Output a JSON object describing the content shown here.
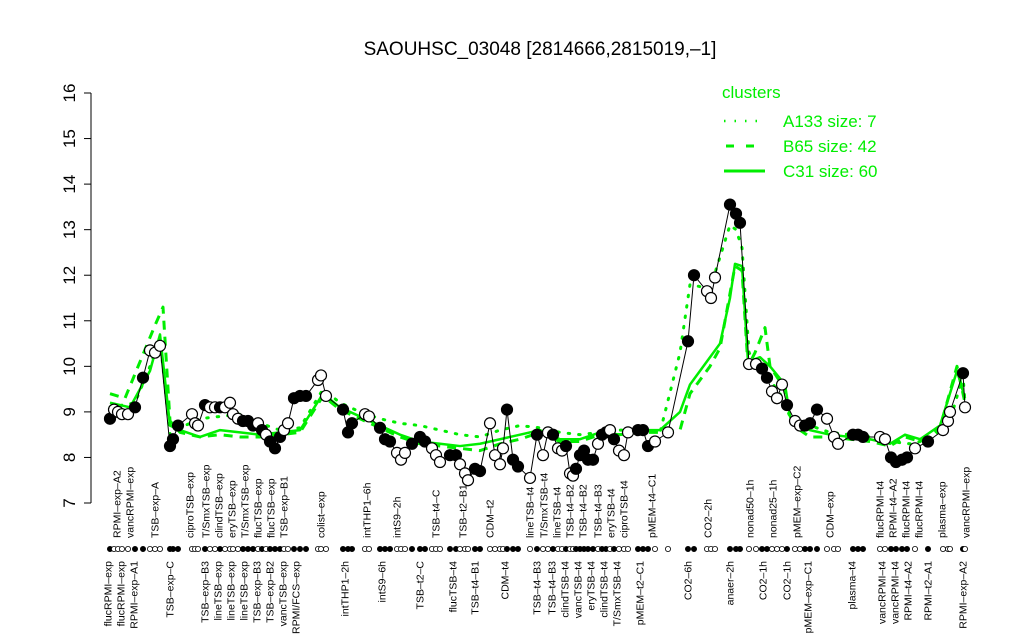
{
  "chart_data": {
    "type": "line",
    "title": "SAOUHSC_03048 [2814666,2815019,–1]",
    "xlabel": "",
    "ylabel": "",
    "ylim": [
      7,
      16
    ],
    "xlim": [
      0,
      85.5
    ],
    "yticks": [
      "7",
      "8",
      "9",
      "10",
      "11",
      "12",
      "13",
      "14",
      "15",
      "16"
    ],
    "grid": false,
    "legend": {
      "title": "clusters",
      "placement": "top-right",
      "color": "#00ee00",
      "entries": [
        {
          "label": "A133 size: 7",
          "style": "dotted"
        },
        {
          "label": "B65 size: 42",
          "style": "dashed"
        },
        {
          "label": "C31 size: 60",
          "style": "solid"
        }
      ]
    },
    "points_note_fields": [
      "x",
      "value",
      "filled"
    ],
    "points": [
      [
        0,
        8.85,
        1
      ],
      [
        0.4,
        9.05,
        0
      ],
      [
        0.8,
        9.0,
        0
      ],
      [
        1.2,
        8.95,
        0
      ],
      [
        1.8,
        8.95,
        0
      ],
      [
        2.5,
        9.1,
        1
      ],
      [
        3.3,
        9.75,
        1
      ],
      [
        4.0,
        10.35,
        0
      ],
      [
        4.5,
        10.3,
        0
      ],
      [
        5.0,
        10.45,
        0
      ],
      [
        6.0,
        8.25,
        1
      ],
      [
        6.3,
        8.4,
        1
      ],
      [
        6.8,
        8.7,
        1
      ],
      [
        8.2,
        8.95,
        0
      ],
      [
        8.5,
        8.75,
        0
      ],
      [
        8.8,
        8.7,
        0
      ],
      [
        9.5,
        9.15,
        1
      ],
      [
        10.0,
        9.1,
        0
      ],
      [
        10.5,
        9.1,
        0
      ],
      [
        11.0,
        9.1,
        1
      ],
      [
        11.5,
        9.1,
        0
      ],
      [
        12.0,
        9.2,
        0
      ],
      [
        12.3,
        8.95,
        0
      ],
      [
        12.8,
        8.85,
        0
      ],
      [
        13.3,
        8.8,
        1
      ],
      [
        13.8,
        8.8,
        1
      ],
      [
        14.3,
        8.7,
        1
      ],
      [
        14.8,
        8.75,
        0
      ],
      [
        15.2,
        8.6,
        1
      ],
      [
        15.6,
        8.5,
        0
      ],
      [
        16.0,
        8.35,
        1
      ],
      [
        16.5,
        8.2,
        1
      ],
      [
        17.0,
        8.45,
        1
      ],
      [
        17.4,
        8.6,
        0
      ],
      [
        17.8,
        8.75,
        0
      ],
      [
        18.4,
        9.3,
        1
      ],
      [
        19.0,
        9.35,
        1
      ],
      [
        19.6,
        9.35,
        1
      ],
      [
        20.8,
        9.7,
        0
      ],
      [
        21.1,
        9.8,
        0
      ],
      [
        21.6,
        9.35,
        0
      ],
      [
        23.3,
        9.05,
        1
      ],
      [
        23.8,
        8.55,
        1
      ],
      [
        24.2,
        8.75,
        1
      ],
      [
        25.5,
        8.95,
        0
      ],
      [
        25.9,
        8.9,
        0
      ],
      [
        27.0,
        8.65,
        1
      ],
      [
        27.5,
        8.4,
        1
      ],
      [
        28.0,
        8.35,
        1
      ],
      [
        28.7,
        8.1,
        0
      ],
      [
        29.1,
        7.95,
        0
      ],
      [
        29.5,
        8.1,
        0
      ],
      [
        30.2,
        8.3,
        1
      ],
      [
        31.0,
        8.45,
        1
      ],
      [
        31.5,
        8.35,
        1
      ],
      [
        32.2,
        8.2,
        0
      ],
      [
        32.6,
        8.05,
        0
      ],
      [
        33.0,
        7.9,
        0
      ],
      [
        34.0,
        8.05,
        1
      ],
      [
        34.6,
        8.05,
        1
      ],
      [
        35.0,
        7.85,
        0
      ],
      [
        35.5,
        7.65,
        0
      ],
      [
        35.8,
        7.5,
        0
      ],
      [
        36.5,
        7.75,
        1
      ],
      [
        37.0,
        7.7,
        1
      ],
      [
        38.0,
        8.75,
        0
      ],
      [
        38.5,
        8.05,
        0
      ],
      [
        39.0,
        7.85,
        0
      ],
      [
        39.3,
        8.2,
        0
      ],
      [
        39.7,
        9.05,
        1
      ],
      [
        40.3,
        7.95,
        1
      ],
      [
        40.8,
        7.8,
        1
      ],
      [
        42.0,
        7.55,
        0
      ],
      [
        42.7,
        8.5,
        1
      ],
      [
        43.3,
        8.05,
        0
      ],
      [
        43.8,
        8.55,
        0
      ],
      [
        44.3,
        8.5,
        1
      ],
      [
        44.8,
        8.2,
        0
      ],
      [
        45.2,
        8.15,
        0
      ],
      [
        45.6,
        8.25,
        1
      ],
      [
        46.0,
        7.65,
        0
      ],
      [
        46.3,
        7.6,
        0
      ],
      [
        46.6,
        7.75,
        1
      ],
      [
        47.0,
        8.05,
        1
      ],
      [
        47.4,
        8.15,
        1
      ],
      [
        47.8,
        7.95,
        1
      ],
      [
        48.3,
        7.95,
        1
      ],
      [
        48.8,
        8.3,
        0
      ],
      [
        49.2,
        8.5,
        1
      ],
      [
        49.6,
        8.55,
        1
      ],
      [
        50.0,
        8.6,
        0
      ],
      [
        50.4,
        8.4,
        1
      ],
      [
        50.9,
        8.15,
        0
      ],
      [
        51.4,
        8.05,
        0
      ],
      [
        51.8,
        8.55,
        0
      ],
      [
        52.8,
        8.6,
        1
      ],
      [
        53.3,
        8.6,
        1
      ],
      [
        53.8,
        8.25,
        1
      ],
      [
        54.5,
        8.35,
        0
      ],
      [
        55.8,
        8.55,
        0
      ],
      [
        57.8,
        10.55,
        1
      ],
      [
        58.4,
        12.0,
        1
      ],
      [
        59.7,
        11.65,
        0
      ],
      [
        60.1,
        11.5,
        0
      ],
      [
        60.5,
        11.95,
        0
      ],
      [
        62.0,
        13.55,
        1
      ],
      [
        62.6,
        13.35,
        1
      ],
      [
        63.0,
        13.15,
        1
      ],
      [
        63.9,
        10.05,
        0
      ],
      [
        64.6,
        10.05,
        0
      ],
      [
        65.2,
        9.95,
        1
      ],
      [
        65.7,
        9.75,
        1
      ],
      [
        66.2,
        9.45,
        0
      ],
      [
        66.7,
        9.3,
        0
      ],
      [
        67.2,
        9.6,
        0
      ],
      [
        67.7,
        9.15,
        1
      ],
      [
        68.5,
        8.8,
        0
      ],
      [
        69.0,
        8.7,
        0
      ],
      [
        69.5,
        8.7,
        1
      ],
      [
        70.0,
        8.75,
        1
      ],
      [
        70.7,
        9.05,
        1
      ],
      [
        71.7,
        8.85,
        0
      ],
      [
        72.4,
        8.45,
        0
      ],
      [
        72.8,
        8.3,
        0
      ],
      [
        74.3,
        8.5,
        1
      ],
      [
        74.8,
        8.5,
        1
      ],
      [
        75.3,
        8.45,
        1
      ],
      [
        77.0,
        8.45,
        0
      ],
      [
        77.5,
        8.4,
        0
      ],
      [
        78.1,
        8.0,
        1
      ],
      [
        78.6,
        7.9,
        1
      ],
      [
        79.2,
        7.95,
        1
      ],
      [
        79.7,
        8.0,
        1
      ],
      [
        80.5,
        8.2,
        0
      ],
      [
        81.8,
        8.35,
        1
      ],
      [
        83.3,
        8.6,
        0
      ],
      [
        83.8,
        8.8,
        0
      ],
      [
        84.0,
        9.0,
        0
      ],
      [
        85.3,
        9.85,
        1
      ],
      [
        85.5,
        9.1,
        0
      ]
    ],
    "series": [
      {
        "name": "C31 size: 60",
        "style": "solid",
        "x": [
          0,
          2,
          3,
          4,
          5,
          6,
          7,
          9,
          11,
          13,
          15,
          17,
          19,
          21.3,
          23,
          25,
          27,
          29,
          31,
          33,
          35,
          37,
          39,
          41,
          43,
          45,
          47,
          49,
          51,
          53,
          55,
          57,
          58,
          60,
          61,
          62,
          62.5,
          63.2,
          63.8,
          65,
          66,
          67.5,
          68,
          69,
          70,
          72,
          74,
          76,
          78,
          79.5,
          81,
          83,
          84.7,
          85.5
        ],
        "y": [
          9.2,
          9.1,
          9.5,
          9.9,
          10.7,
          8.7,
          8.6,
          8.45,
          8.6,
          8.55,
          8.5,
          8.55,
          8.6,
          9.4,
          9.1,
          8.9,
          8.7,
          8.5,
          8.35,
          8.3,
          8.25,
          8.3,
          8.4,
          8.5,
          8.6,
          8.4,
          8.4,
          8.55,
          8.5,
          8.6,
          8.6,
          9.0,
          9.6,
          10.2,
          10.5,
          11.5,
          12.25,
          12.2,
          10.1,
          10.2,
          10.0,
          9.6,
          8.9,
          8.7,
          8.6,
          8.5,
          8.45,
          8.4,
          8.3,
          8.5,
          8.4,
          8.7,
          9.9,
          9.3
        ]
      },
      {
        "name": "B65 size: 42",
        "style": "dashed",
        "x": [
          0,
          1.5,
          3,
          4.5,
          5.3,
          6,
          7,
          9,
          11,
          13,
          15,
          17,
          19,
          21.3,
          23,
          25,
          27,
          29,
          31,
          33,
          35,
          37,
          39,
          41,
          43,
          45,
          47,
          49,
          51,
          53,
          55,
          57,
          58,
          60,
          61,
          62,
          62.5,
          63.2,
          63.8,
          64.5,
          65.5,
          66,
          67.5,
          68,
          69,
          70,
          72,
          74,
          76,
          78,
          79.5,
          81,
          83,
          84.7,
          85.5
        ],
        "y": [
          9.4,
          9.3,
          10.1,
          10.9,
          11.3,
          8.8,
          8.55,
          8.45,
          8.5,
          8.45,
          8.45,
          8.5,
          8.55,
          9.35,
          9.05,
          8.85,
          8.65,
          8.45,
          8.3,
          8.25,
          8.2,
          8.15,
          8.3,
          8.4,
          8.55,
          8.35,
          8.35,
          8.5,
          8.5,
          8.55,
          8.55,
          8.6,
          9.4,
          10.0,
          10.4,
          11.6,
          12.2,
          12.1,
          10.0,
          10.3,
          10.85,
          10.0,
          9.5,
          8.9,
          8.6,
          8.45,
          8.45,
          8.4,
          8.35,
          8.25,
          8.45,
          8.35,
          8.65,
          10.0,
          9.2
        ]
      },
      {
        "name": "A133 size: 7",
        "style": "dotted",
        "x": [
          0,
          2.5,
          4,
          5,
          6,
          7,
          9,
          11,
          13,
          15,
          17,
          19,
          21.3,
          23,
          25,
          27,
          29,
          31,
          33,
          35,
          37,
          39,
          41,
          43,
          45,
          47,
          49,
          51,
          53,
          55,
          57,
          58,
          60,
          62,
          62.6,
          63.2,
          63.9,
          65,
          67,
          68,
          70,
          72,
          74,
          76,
          78,
          80,
          82,
          84,
          85.3,
          85.5
        ],
        "y": [
          9.1,
          9.2,
          10.0,
          10.6,
          8.5,
          8.65,
          8.85,
          8.9,
          8.95,
          8.75,
          8.6,
          8.65,
          9.5,
          9.2,
          9.0,
          8.85,
          8.75,
          8.7,
          8.6,
          8.5,
          8.45,
          8.6,
          8.7,
          8.65,
          8.55,
          8.5,
          8.55,
          8.6,
          8.6,
          8.55,
          10.3,
          11.8,
          11.7,
          13.1,
          13.0,
          12.6,
          10.3,
          10.0,
          9.4,
          8.9,
          8.7,
          8.55,
          8.5,
          8.45,
          8.35,
          8.3,
          8.4,
          8.8,
          9.8,
          9.2
        ]
      }
    ],
    "xlabels_top": [
      {
        "x": 0.7,
        "text": "RPMI–exp–A2"
      },
      {
        "x": 1.6,
        "text": "vancRPMI–exp"
      },
      {
        "x": 4.5,
        "text": "TSB–exp–A"
      },
      {
        "x": 8.0,
        "text": "ciproTSB–exp"
      },
      {
        "x": 9.6,
        "text": "T/SmxTSB–exp"
      },
      {
        "x": 10.8,
        "text": "clindTSB–exp"
      },
      {
        "x": 12.0,
        "text": "eryTSB–exp"
      },
      {
        "x": 13.4,
        "text": "T/SmxTSB–exp"
      },
      {
        "x": 14.0,
        "text": "flucTSB–exp"
      },
      {
        "x": 15.5,
        "text": "flucTSB–exp"
      },
      {
        "x": 17.3,
        "text": "TSB–exp–B1"
      },
      {
        "x": 21.1,
        "text": "colist–exp"
      },
      {
        "x": 25.7,
        "text": "intTHP1–6h"
      },
      {
        "x": 28.7,
        "text": "intS9–2h"
      },
      {
        "x": 32.6,
        "text": "TSB–t4–C"
      },
      {
        "x": 35.3,
        "text": "TSB–t2–B1"
      },
      {
        "x": 38.0,
        "text": "CDM–t2"
      },
      {
        "x": 42.0,
        "text": "lineTSB–t4"
      },
      {
        "x": 43.4,
        "text": "T/SmxTSB–t4"
      },
      {
        "x": 44.6,
        "text": "lineTSB–t4"
      },
      {
        "x": 45.8,
        "text": "TSB–t4–B2"
      },
      {
        "x": 47.3,
        "text": "TSB–t4–B2"
      },
      {
        "x": 48.8,
        "text": "TSB–t4–B3"
      },
      {
        "x": 50.0,
        "text": "eryTSB–t4"
      },
      {
        "x": 51.1,
        "text": "ciproTSB–t4"
      },
      {
        "x": 54.2,
        "text": "pMEM–t4–C1"
      },
      {
        "x": 59.8,
        "text": "CO2–2h"
      },
      {
        "x": 64.0,
        "text": "nonad50–1h"
      },
      {
        "x": 66.3,
        "text": "nonad25–1h"
      },
      {
        "x": 68.7,
        "text": "pMEM–exp–C2"
      },
      {
        "x": 72.0,
        "text": "CDM–exp"
      },
      {
        "x": 77.0,
        "text": "flucRPMI–t4"
      },
      {
        "x": 77.6,
        "text": "RPMI–t4–A2"
      },
      {
        "x": 79.5,
        "text": "flucRPMI–t4"
      },
      {
        "x": 80.7,
        "text": "flucRPMI–t4"
      },
      {
        "x": 83.2,
        "text": "plasma–exp"
      },
      {
        "x": 85.6,
        "text": "vancRPMI–exp"
      }
    ],
    "xlabels_bottom": [
      {
        "x": -0.2,
        "text": "flucRPMI–exp"
      },
      {
        "x": 1.0,
        "text": "flucRPMI–exp"
      },
      {
        "x": 2.3,
        "text": "RPMI–exp–A1"
      },
      {
        "x": 6.0,
        "text": "TSB–exp–C"
      },
      {
        "x": 9.5,
        "text": "TSB–exp–B3"
      },
      {
        "x": 10.4,
        "text": "lineTSB–exp"
      },
      {
        "x": 11.7,
        "text": "lineTSB–exp"
      },
      {
        "x": 13.0,
        "text": "lineTSB–exp"
      },
      {
        "x": 13.3,
        "text": "TSB–exp–B3"
      },
      {
        "x": 14.8,
        "text": "TSB–exp–B2"
      },
      {
        "x": 15.9,
        "text": "vancTSB–exp"
      },
      {
        "x": 18.6,
        "text": "RPMI/FCS–exp"
      },
      {
        "x": 23.5,
        "text": "intTHP1–2h"
      },
      {
        "x": 27.2,
        "text": "intS9–6h"
      },
      {
        "x": 31.0,
        "text": "TSB–t2–C"
      },
      {
        "x": 34.3,
        "text": "flucTSB–t4"
      },
      {
        "x": 36.5,
        "text": "TSB–t4–B1"
      },
      {
        "x": 39.5,
        "text": "CDM–t4"
      },
      {
        "x": 42.7,
        "text": "TSB–t4–B3"
      },
      {
        "x": 44.2,
        "text": "TSB–t4–B3"
      },
      {
        "x": 45.5,
        "text": "clindTSB–t4"
      },
      {
        "x": 46.6,
        "text": "vancTSB–t4"
      },
      {
        "x": 47.7,
        "text": "eryTSB–t4"
      },
      {
        "x": 49.0,
        "text": "clindTSB–t4"
      },
      {
        "x": 50.3,
        "text": "T/SmxTSB–t4"
      },
      {
        "x": 53.0,
        "text": "pMEM–t2–C1"
      },
      {
        "x": 57.8,
        "text": "CO2–6h"
      },
      {
        "x": 62.0,
        "text": "anaer–2h"
      },
      {
        "x": 65.3,
        "text": "CO2–1h"
      },
      {
        "x": 67.7,
        "text": "CO2–1h"
      },
      {
        "x": 69.8,
        "text": "pMEM–exp–C1"
      },
      {
        "x": 74.2,
        "text": "plasma–t4"
      },
      {
        "x": 77.2,
        "text": "vancRPMI–t4"
      },
      {
        "x": 77.9,
        "text": "vancRPMI–t4"
      },
      {
        "x": 79.1,
        "text": "RPMI–t4–A2"
      },
      {
        "x": 81.8,
        "text": "RPMI–t2–A1"
      },
      {
        "x": 85.3,
        "text": "RPMI–exp–A2"
      }
    ],
    "colors": {
      "clusters": "#00ee00",
      "data_line": "#000000"
    }
  }
}
